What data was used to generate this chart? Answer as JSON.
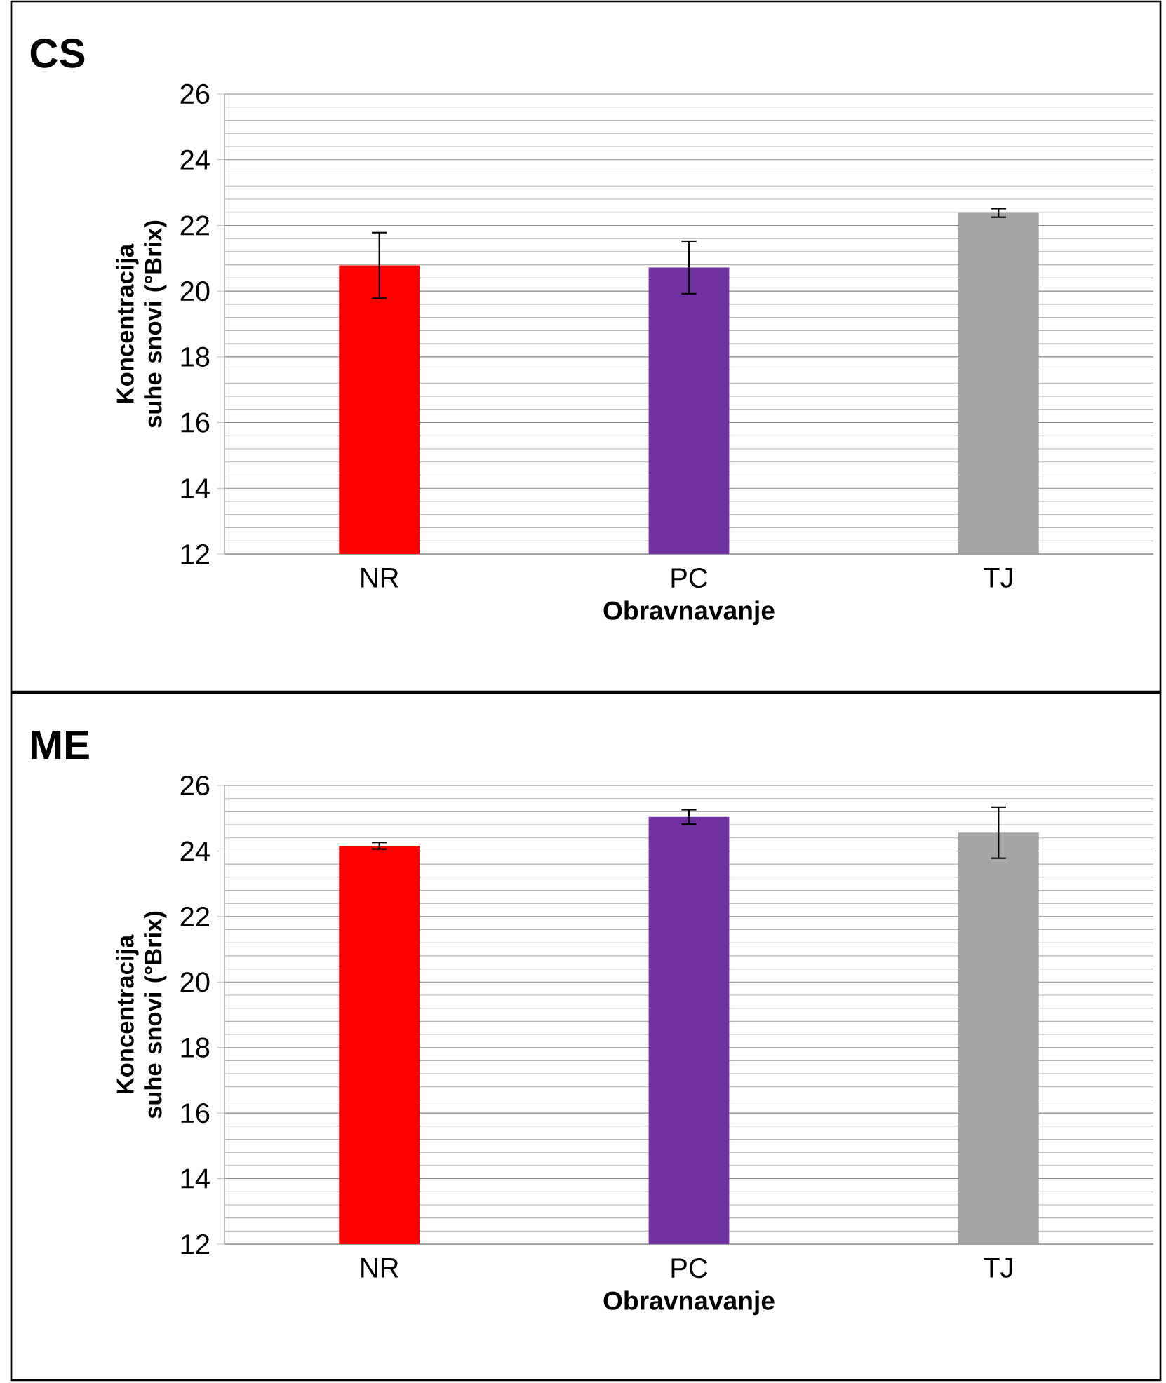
{
  "chart_data": [
    {
      "type": "bar",
      "title": "CS",
      "xlabel": "Obravnavanje",
      "ylabel": "Koncentracija suhe snovi (°Brix)",
      "categories": [
        "NR",
        "PC",
        "TJ"
      ],
      "values": [
        20.78,
        20.72,
        22.38
      ],
      "colors": [
        "#ff0000",
        "#7030a0",
        "#a5a5a5"
      ],
      "errors": [
        1.0,
        0.8,
        0.13
      ],
      "ylim": [
        12,
        26
      ],
      "yticks": [
        12,
        14,
        16,
        18,
        20,
        22,
        24,
        26
      ],
      "grid": "y"
    },
    {
      "type": "bar",
      "title": "ME",
      "xlabel": "Obravnavanje",
      "ylabel": "Koncentracija suhe snovi (°Brix)",
      "categories": [
        "NR",
        "PC",
        "TJ"
      ],
      "values": [
        24.16,
        25.04,
        24.56
      ],
      "colors": [
        "#ff0000",
        "#7030a0",
        "#a5a5a5"
      ],
      "errors": [
        0.1,
        0.22,
        0.78
      ],
      "ylim": [
        12,
        26
      ],
      "yticks": [
        12,
        14,
        16,
        18,
        20,
        22,
        24,
        26
      ],
      "grid": "y"
    }
  ]
}
